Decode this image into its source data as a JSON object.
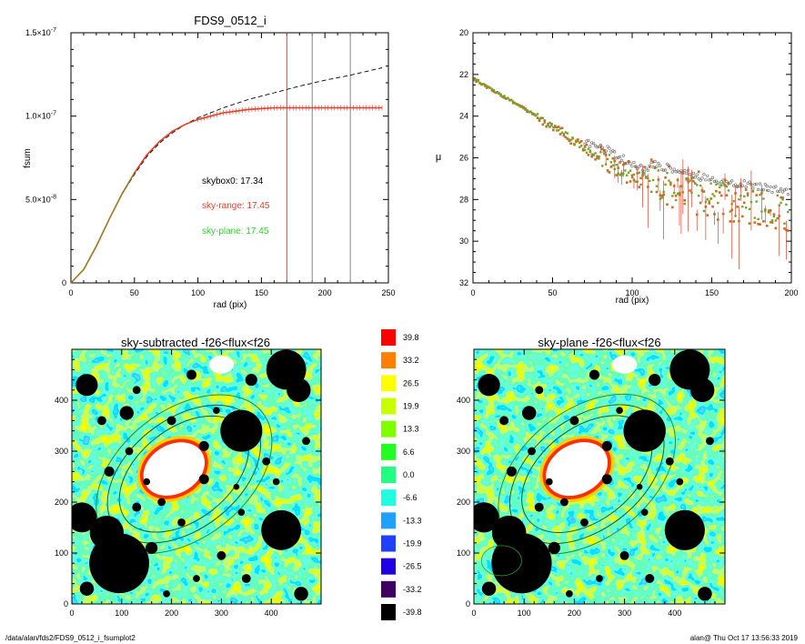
{
  "footer": {
    "path": "/data/alan/fds2/FDS9_0512_i_fsumplot2",
    "stamp": "alan@  Thu Oct 17 13:56:33 2019"
  },
  "chart_data": [
    {
      "type": "line",
      "title": "FDS9_0512_i",
      "xlabel": "rad (pix)",
      "ylabel": "fsum",
      "xlim": [
        0,
        250
      ],
      "ylim": [
        0,
        1.5e-07
      ],
      "xticks": [
        "0",
        "50",
        "100",
        "150",
        "200",
        "250"
      ],
      "yticks": [
        {
          "label": "0",
          "exp": ""
        },
        {
          "label": "5.0×10",
          "exp": "-8"
        },
        {
          "label": "1.0×10",
          "exp": "-7"
        },
        {
          "label": "1.5×10",
          "exp": "-7"
        }
      ],
      "vlines": [
        {
          "x": 170,
          "color": "#e0402a"
        },
        {
          "x": 190,
          "color": "#888888"
        },
        {
          "x": 220,
          "color": "#888888"
        }
      ],
      "annotations": [
        {
          "text": "skybox0: 17.34",
          "color": "#000000"
        },
        {
          "text": "sky-range: 17.45",
          "color": "#e0402a"
        },
        {
          "text": "sky-plane: 17.45",
          "color": "#33cc33"
        }
      ],
      "series": [
        {
          "color": "#000000",
          "dash": true,
          "x": [
            0,
            10,
            20,
            30,
            40,
            50,
            60,
            70,
            80,
            90,
            100,
            120,
            140,
            160,
            180,
            200,
            220,
            245
          ],
          "y": [
            0,
            8e-09,
            2.2e-08,
            3.8e-08,
            5.3e-08,
            6.5e-08,
            7.6e-08,
            8.4e-08,
            9e-08,
            9.5e-08,
            9.9e-08,
            1.05e-07,
            1.1e-07,
            1.14e-07,
            1.18e-07,
            1.215e-07,
            1.245e-07,
            1.29e-07
          ]
        },
        {
          "color": "#e0402a",
          "dash": false,
          "x": [
            0,
            10,
            20,
            30,
            40,
            50,
            60,
            70,
            80,
            90,
            100,
            110,
            120,
            130,
            140,
            150,
            160,
            170,
            180,
            200,
            220,
            245
          ],
          "y": [
            0,
            8e-09,
            2.2e-08,
            3.8e-08,
            5.3e-08,
            6.6e-08,
            7.7e-08,
            8.5e-08,
            9.1e-08,
            9.5e-08,
            9.8e-08,
            1e-07,
            1.02e-07,
            1.03e-07,
            1.04e-07,
            1.045e-07,
            1.05e-07,
            1.05e-07,
            1.05e-07,
            1.05e-07,
            1.05e-07,
            1.05e-07
          ]
        }
      ]
    },
    {
      "type": "scatter",
      "title": "",
      "xlabel": "rad (pix)",
      "ylabel": "μ",
      "xlim": [
        0,
        200
      ],
      "ylim": [
        32,
        20
      ],
      "xticks": [
        "0",
        "50",
        "100",
        "150",
        "200"
      ],
      "yticks": [
        "20",
        "22",
        "24",
        "26",
        "28",
        "30",
        "32"
      ],
      "trend": {
        "x": [
          0,
          25,
          50,
          75,
          100,
          125,
          150,
          175,
          200
        ],
        "y": [
          22.2,
          23.3,
          24.5,
          25.8,
          26.8,
          27.4,
          27.9,
          28.2,
          28.5
        ]
      }
    },
    {
      "type": "heatmap",
      "title": "sky-subtracted -f26<flux<f26",
      "xlim": [
        0,
        500
      ],
      "ylim": [
        0,
        500
      ],
      "xticks": [
        "0",
        "100",
        "200",
        "300",
        "400"
      ],
      "yticks": [
        "0",
        "100",
        "200",
        "300",
        "400"
      ]
    },
    {
      "type": "heatmap",
      "title": "sky-plane -f26<flux<f26",
      "xlim": [
        0,
        500
      ],
      "ylim": [
        0,
        500
      ],
      "xticks": [
        "0",
        "100",
        "200",
        "300",
        "400"
      ],
      "yticks": [
        "0",
        "100",
        "200",
        "300",
        "400"
      ]
    }
  ],
  "colorbar": {
    "levels": [
      "39.8",
      "33.2",
      "26.5",
      "19.9",
      "13.3",
      "6.6",
      "0.0",
      "-6.6",
      "-13.3",
      "-19.9",
      "-26.5",
      "-33.2",
      "-39.8"
    ],
    "colors": [
      "#ff0000",
      "#ff8000",
      "#ffff00",
      "#c8ff00",
      "#80ff00",
      "#20ff20",
      "#20ff80",
      "#20ffe0",
      "#20a0ff",
      "#2040ff",
      "#2000e0",
      "#400060",
      "#000000"
    ]
  }
}
